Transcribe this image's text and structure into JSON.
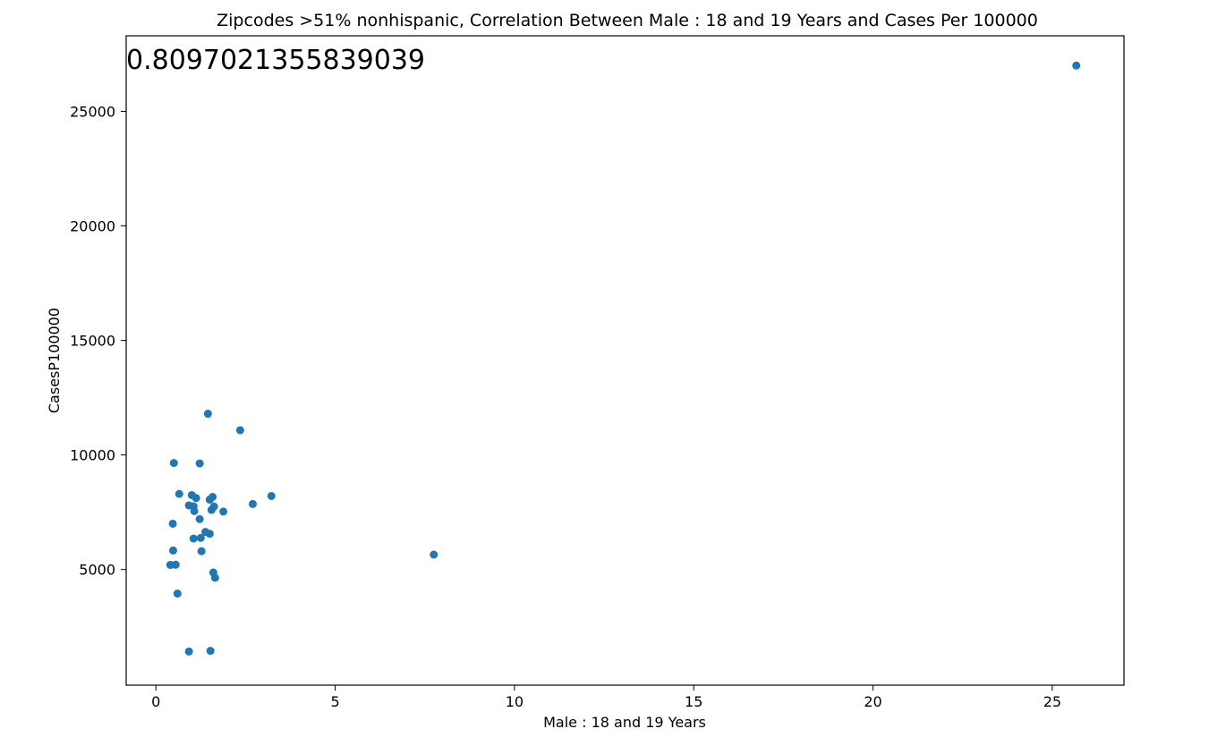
{
  "chart_data": {
    "type": "scatter",
    "title": "Zipcodes >51% nonhispanic, Correlation Between Male : 18 and 19 Years and Cases Per 100000",
    "xlabel": "Male : 18 and 19 Years",
    "ylabel": "CasesP100000",
    "annotation": "0.8097021355839039",
    "xlim": [
      -0.83,
      27.0
    ],
    "ylim": [
      -50,
      28300
    ],
    "xticks": [
      0,
      5,
      10,
      15,
      20,
      25
    ],
    "yticks": [
      5000,
      10000,
      15000,
      20000,
      25000
    ],
    "color": "#1f77b4",
    "grid": false,
    "points": [
      {
        "x": 25.67,
        "y": 27000
      },
      {
        "x": 1.45,
        "y": 11800
      },
      {
        "x": 2.35,
        "y": 11080
      },
      {
        "x": 0.5,
        "y": 9650
      },
      {
        "x": 1.22,
        "y": 9630
      },
      {
        "x": 0.65,
        "y": 8300
      },
      {
        "x": 1.0,
        "y": 8250
      },
      {
        "x": 1.12,
        "y": 8120
      },
      {
        "x": 3.22,
        "y": 8210
      },
      {
        "x": 1.58,
        "y": 8170
      },
      {
        "x": 1.5,
        "y": 8050
      },
      {
        "x": 0.92,
        "y": 7800
      },
      {
        "x": 1.05,
        "y": 7760
      },
      {
        "x": 1.62,
        "y": 7750
      },
      {
        "x": 2.7,
        "y": 7860
      },
      {
        "x": 1.07,
        "y": 7550
      },
      {
        "x": 1.55,
        "y": 7600
      },
      {
        "x": 1.88,
        "y": 7530
      },
      {
        "x": 1.22,
        "y": 7200
      },
      {
        "x": 0.47,
        "y": 7000
      },
      {
        "x": 1.38,
        "y": 6640
      },
      {
        "x": 1.5,
        "y": 6560
      },
      {
        "x": 1.05,
        "y": 6350
      },
      {
        "x": 1.25,
        "y": 6380
      },
      {
        "x": 0.48,
        "y": 5830
      },
      {
        "x": 1.27,
        "y": 5800
      },
      {
        "x": 7.75,
        "y": 5650
      },
      {
        "x": 0.4,
        "y": 5200
      },
      {
        "x": 0.55,
        "y": 5210
      },
      {
        "x": 1.6,
        "y": 4870
      },
      {
        "x": 1.65,
        "y": 4640
      },
      {
        "x": 0.6,
        "y": 3950
      },
      {
        "x": 1.52,
        "y": 1450
      },
      {
        "x": 0.92,
        "y": 1420
      }
    ]
  }
}
